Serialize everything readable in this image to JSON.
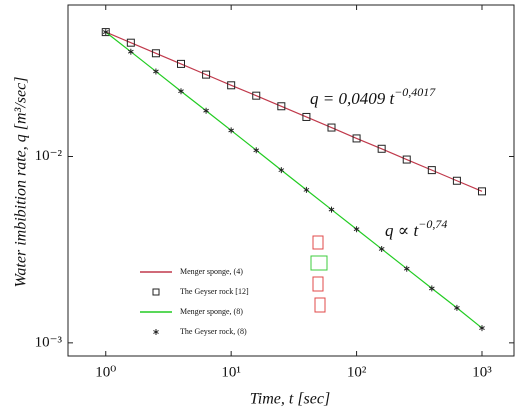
{
  "chart_data": {
    "type": "line",
    "xlabel": "Time, t  [sec]",
    "ylabel": "Water imbibition rate, q  [m³/sec]",
    "xlog": true,
    "ylog": true,
    "xlim": [
      0.5,
      1800
    ],
    "ylim": [
      0.00085,
      0.065
    ],
    "xticks": [
      {
        "value": 1,
        "label": "10⁰"
      },
      {
        "value": 10,
        "label": "10¹"
      },
      {
        "value": 100,
        "label": "10²"
      },
      {
        "value": 1000,
        "label": "10³"
      }
    ],
    "yticks": [
      {
        "value": 0.01,
        "label": "10⁻²"
      },
      {
        "value": 0.001,
        "label": "10⁻³"
      }
    ],
    "legend": "lower left",
    "x": [
      1,
      1.585,
      2.512,
      3.981,
      6.31,
      10,
      15.85,
      25.12,
      39.81,
      63.1,
      100,
      158.5,
      251.2,
      398.1,
      631,
      1000
    ],
    "series": [
      {
        "name": "Menger sponge, (4)",
        "color": "#c0394b",
        "marker": "none",
        "values": [
          0.0465,
          0.0408,
          0.0358,
          0.0314,
          0.0275,
          0.0241,
          0.0212,
          0.0186,
          0.0163,
          0.0143,
          0.0125,
          0.011,
          0.00963,
          0.00845,
          0.00741,
          0.0065
        ]
      },
      {
        "name": "The Geyser rock [12]",
        "color": "#222222",
        "marker": "square",
        "values": [
          0.0465,
          0.0408,
          0.0358,
          0.0314,
          0.0275,
          0.0241,
          0.0212,
          0.0186,
          0.0163,
          0.0143,
          0.0125,
          0.011,
          0.00963,
          0.00845,
          0.00741,
          0.0065
        ]
      },
      {
        "name": "Menger sponge, (8)",
        "color": "#22cc22",
        "marker": "none",
        "values": [
          0.0465,
          0.0365,
          0.0286,
          0.0224,
          0.0176,
          0.0138,
          0.0108,
          0.00845,
          0.00662,
          0.00519,
          0.00407,
          0.00319,
          0.0025,
          0.00196,
          0.00154,
          0.0012
        ]
      },
      {
        "name": "The Geyser rock, (8)",
        "color": "#222222",
        "marker": "star",
        "values": [
          0.0465,
          0.0365,
          0.0286,
          0.0224,
          0.0176,
          0.0138,
          0.0108,
          0.00845,
          0.00662,
          0.00519,
          0.00407,
          0.00319,
          0.0025,
          0.00196,
          0.00154,
          0.0012
        ]
      }
    ],
    "annotations": [
      {
        "text": "q = 0,0409 t",
        "sup": "−0,4017"
      },
      {
        "text": "q ∝ t",
        "sup": "−0,74"
      }
    ]
  }
}
